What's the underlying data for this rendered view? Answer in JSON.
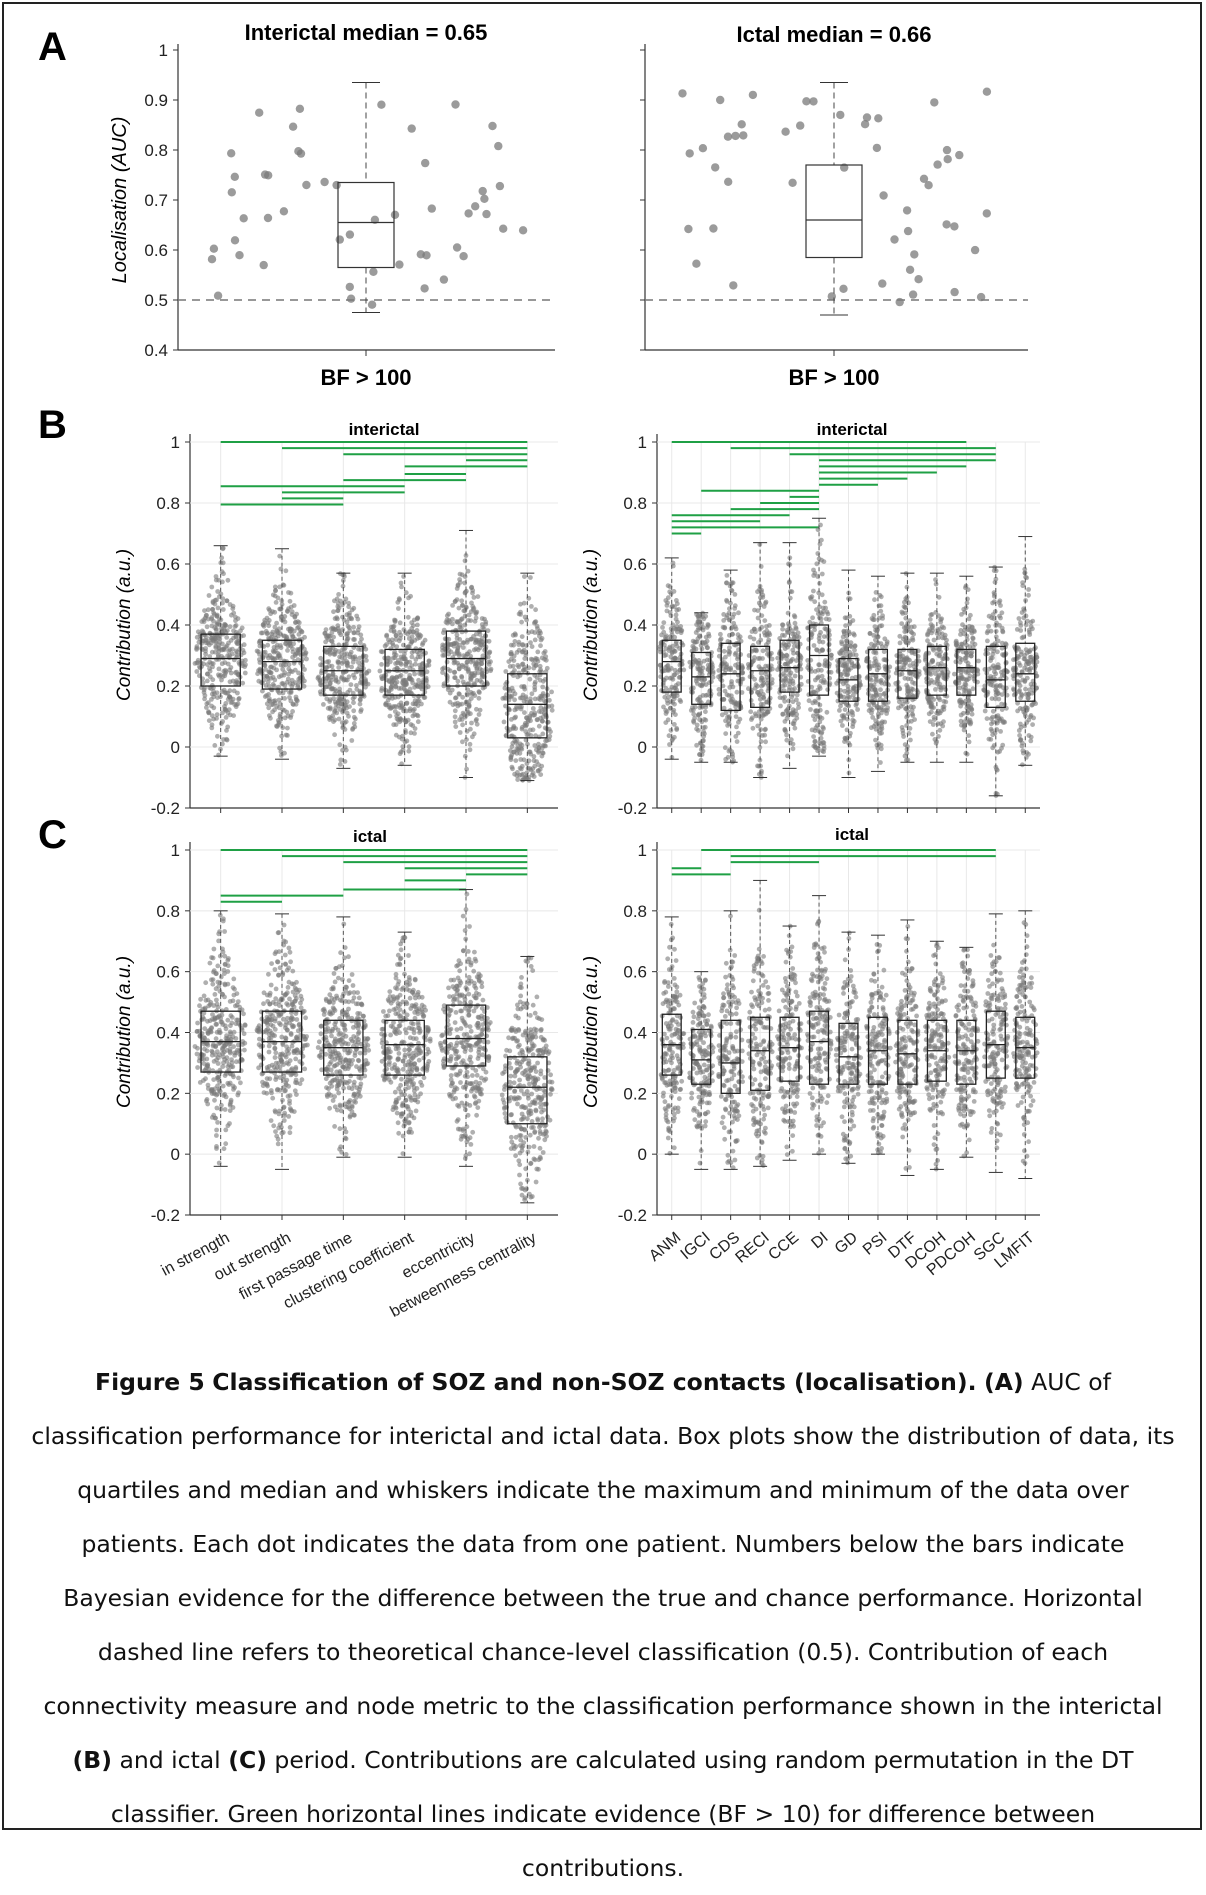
{
  "panels": [
    {
      "id": "A",
      "label": "A",
      "plots": [
        {
          "title": "Interictal median = 0.65",
          "xlabel": "BF > 100",
          "ylabel": "Localisation (AUC)",
          "yticks": [
            "1",
            "0.9",
            "0.8",
            "0.7",
            "0.6",
            "0.5",
            "0.4"
          ]
        },
        {
          "title": "Ictal median = 0.66",
          "xlabel": "BF > 100",
          "ylabel": "",
          "yticks": []
        }
      ]
    },
    {
      "id": "B",
      "label": "B",
      "plots": [
        {
          "title": "interictal",
          "ylabel": "Contribution (a.u.)",
          "yticks": [
            "1",
            "0.8",
            "0.6",
            "0.4",
            "0.2",
            "0",
            "-0.2"
          ]
        },
        {
          "title": "interictal",
          "ylabel": "Contribution (a.u.)",
          "yticks": [
            "1",
            "0.8",
            "0.6",
            "0.4",
            "0.2",
            "0",
            "-0.2"
          ]
        }
      ]
    },
    {
      "id": "C",
      "label": "C",
      "plots": [
        {
          "title": "ictal",
          "ylabel": "Contribution (a.u.)",
          "yticks": [
            "1",
            "0.8",
            "0.6",
            "0.4",
            "0.2",
            "0",
            "-0.2"
          ]
        },
        {
          "title": "ictal",
          "ylabel": "Contribution (a.u.)",
          "yticks": [
            "1",
            "0.8",
            "0.6",
            "0.4",
            "0.2",
            "0",
            "-0.2"
          ]
        }
      ]
    }
  ],
  "node_metrics": [
    "in strength",
    "out strength",
    "first passage time",
    "clustering coefficient",
    "eccentricity",
    "betweenness centrality"
  ],
  "connectivity_measures": [
    "ANM",
    "IGCI",
    "CDS",
    "RECI",
    "CCE",
    "DI",
    "GD",
    "PSI",
    "DTF",
    "DCOH",
    "PDCOH",
    "SGC",
    "LMFIT"
  ],
  "colors": {
    "evidence_line": "#1fa045",
    "dots": "#7a7a7a",
    "box": "#222222"
  },
  "chart_data": [
    {
      "type": "scatter",
      "panel": "A",
      "title": "Interictal median = 0.65",
      "ylabel": "Localisation (AUC)",
      "xlabel": "BF > 100",
      "ylim": [
        0.4,
        1.0
      ],
      "reference_line": 0.5,
      "box": {
        "whisker_min": 0.475,
        "q1": 0.565,
        "median": 0.655,
        "q3": 0.735,
        "whisker_max": 0.935
      }
    },
    {
      "type": "scatter",
      "panel": "A",
      "title": "Ictal median = 0.66",
      "xlabel": "BF > 100",
      "ylim": [
        0.4,
        1.0
      ],
      "reference_line": 0.5,
      "box": {
        "whisker_min": 0.47,
        "q1": 0.585,
        "median": 0.66,
        "q3": 0.77,
        "whisker_max": 0.935
      }
    },
    {
      "type": "box",
      "panel": "B",
      "title": "interictal",
      "ylabel": "Contribution (a.u.)",
      "ylim": [
        -0.2,
        1.0
      ],
      "categories": [
        "in strength",
        "out strength",
        "first passage time",
        "clustering coefficient",
        "eccentricity",
        "betweenness centrality"
      ],
      "boxes": [
        {
          "min": -0.03,
          "q1": 0.2,
          "median": 0.29,
          "q3": 0.37,
          "max": 0.66
        },
        {
          "min": -0.04,
          "q1": 0.19,
          "median": 0.28,
          "q3": 0.35,
          "max": 0.65
        },
        {
          "min": -0.07,
          "q1": 0.17,
          "median": 0.25,
          "q3": 0.33,
          "max": 0.57
        },
        {
          "min": -0.06,
          "q1": 0.17,
          "median": 0.25,
          "q3": 0.32,
          "max": 0.57
        },
        {
          "min": -0.1,
          "q1": 0.2,
          "median": 0.29,
          "q3": 0.38,
          "max": 0.71
        },
        {
          "min": -0.11,
          "q1": 0.03,
          "median": 0.14,
          "q3": 0.24,
          "max": 0.57
        }
      ]
    },
    {
      "type": "box",
      "panel": "B",
      "title": "interictal",
      "ylabel": "Contribution (a.u.)",
      "ylim": [
        -0.2,
        1.0
      ],
      "categories": [
        "ANM",
        "IGCI",
        "CDS",
        "RECI",
        "CCE",
        "DI",
        "GD",
        "PSI",
        "DTF",
        "DCOH",
        "PDCOH",
        "SGC",
        "LMFIT"
      ],
      "boxes": [
        {
          "min": -0.04,
          "q1": 0.18,
          "median": 0.28,
          "q3": 0.35,
          "max": 0.62
        },
        {
          "min": -0.05,
          "q1": 0.14,
          "median": 0.23,
          "q3": 0.31,
          "max": 0.44
        },
        {
          "min": -0.05,
          "q1": 0.12,
          "median": 0.24,
          "q3": 0.34,
          "max": 0.58
        },
        {
          "min": -0.1,
          "q1": 0.13,
          "median": 0.25,
          "q3": 0.33,
          "max": 0.67
        },
        {
          "min": -0.07,
          "q1": 0.18,
          "median": 0.26,
          "q3": 0.35,
          "max": 0.67
        },
        {
          "min": -0.03,
          "q1": 0.17,
          "median": 0.3,
          "q3": 0.4,
          "max": 0.75
        },
        {
          "min": -0.1,
          "q1": 0.15,
          "median": 0.22,
          "q3": 0.29,
          "max": 0.58
        },
        {
          "min": -0.08,
          "q1": 0.15,
          "median": 0.24,
          "q3": 0.32,
          "max": 0.56
        },
        {
          "min": -0.05,
          "q1": 0.16,
          "median": 0.25,
          "q3": 0.32,
          "max": 0.57
        },
        {
          "min": -0.05,
          "q1": 0.17,
          "median": 0.26,
          "q3": 0.33,
          "max": 0.57
        },
        {
          "min": -0.05,
          "q1": 0.17,
          "median": 0.26,
          "q3": 0.32,
          "max": 0.56
        },
        {
          "min": -0.16,
          "q1": 0.13,
          "median": 0.22,
          "q3": 0.33,
          "max": 0.59
        },
        {
          "min": -0.06,
          "q1": 0.15,
          "median": 0.24,
          "q3": 0.34,
          "max": 0.69
        }
      ]
    },
    {
      "type": "box",
      "panel": "C",
      "title": "ictal",
      "ylabel": "Contribution (a.u.)",
      "ylim": [
        -0.2,
        1.0
      ],
      "categories": [
        "in strength",
        "out strength",
        "first passage time",
        "clustering coefficient",
        "eccentricity",
        "betweenness centrality"
      ],
      "boxes": [
        {
          "min": -0.04,
          "q1": 0.27,
          "median": 0.37,
          "q3": 0.47,
          "max": 0.8
        },
        {
          "min": -0.05,
          "q1": 0.27,
          "median": 0.37,
          "q3": 0.47,
          "max": 0.79
        },
        {
          "min": -0.01,
          "q1": 0.26,
          "median": 0.35,
          "q3": 0.44,
          "max": 0.78
        },
        {
          "min": -0.01,
          "q1": 0.26,
          "median": 0.36,
          "q3": 0.44,
          "max": 0.73
        },
        {
          "min": -0.04,
          "q1": 0.29,
          "median": 0.38,
          "q3": 0.49,
          "max": 0.87
        },
        {
          "min": -0.16,
          "q1": 0.1,
          "median": 0.22,
          "q3": 0.32,
          "max": 0.65
        }
      ]
    },
    {
      "type": "box",
      "panel": "C",
      "title": "ictal",
      "ylabel": "Contribution (a.u.)",
      "ylim": [
        -0.2,
        1.0
      ],
      "categories": [
        "ANM",
        "IGCI",
        "CDS",
        "RECI",
        "CCE",
        "DI",
        "GD",
        "PSI",
        "DTF",
        "DCOH",
        "PDCOH",
        "SGC",
        "LMFIT"
      ],
      "boxes": [
        {
          "min": 0.0,
          "q1": 0.26,
          "median": 0.36,
          "q3": 0.46,
          "max": 0.78
        },
        {
          "min": -0.05,
          "q1": 0.23,
          "median": 0.31,
          "q3": 0.41,
          "max": 0.6
        },
        {
          "min": -0.05,
          "q1": 0.2,
          "median": 0.3,
          "q3": 0.44,
          "max": 0.8
        },
        {
          "min": -0.04,
          "q1": 0.21,
          "median": 0.34,
          "q3": 0.45,
          "max": 0.9
        },
        {
          "min": -0.02,
          "q1": 0.24,
          "median": 0.35,
          "q3": 0.45,
          "max": 0.75
        },
        {
          "min": 0.0,
          "q1": 0.23,
          "median": 0.37,
          "q3": 0.47,
          "max": 0.85
        },
        {
          "min": -0.03,
          "q1": 0.23,
          "median": 0.32,
          "q3": 0.43,
          "max": 0.73
        },
        {
          "min": 0.0,
          "q1": 0.23,
          "median": 0.34,
          "q3": 0.45,
          "max": 0.72
        },
        {
          "min": -0.07,
          "q1": 0.23,
          "median": 0.33,
          "q3": 0.44,
          "max": 0.77
        },
        {
          "min": -0.05,
          "q1": 0.24,
          "median": 0.34,
          "q3": 0.44,
          "max": 0.7
        },
        {
          "min": -0.01,
          "q1": 0.23,
          "median": 0.34,
          "q3": 0.44,
          "max": 0.68
        },
        {
          "min": -0.06,
          "q1": 0.25,
          "median": 0.36,
          "q3": 0.47,
          "max": 0.79
        },
        {
          "min": -0.08,
          "q1": 0.25,
          "median": 0.35,
          "q3": 0.45,
          "max": 0.8
        }
      ]
    }
  ],
  "caption": {
    "figure_label": "Figure 5",
    "title": "Classification of SOZ and non-SOZ contacts (localisation).",
    "part_a": "(A)",
    "text_1": "AUC of classification performance for interictal and ictal data. Box plots show the distribution of data, its quartiles and median and whiskers indicate the maximum and minimum of the data over patients. Each dot indicates the data from one patient. Numbers below the bars indicate Bayesian evidence for the difference between the true and chance performance. Horizontal dashed line refers to theoretical chance-level classification (0.5). Contribution of each connectivity measure and node metric to the classification performance shown in the interictal",
    "part_b": "(B)",
    "text_2": "and ictal",
    "part_c": "(C)",
    "text_3": "period. Contributions are calculated using random permutation in the DT classifier. Green horizontal lines indicate evidence (BF > 10) for difference between contributions."
  }
}
